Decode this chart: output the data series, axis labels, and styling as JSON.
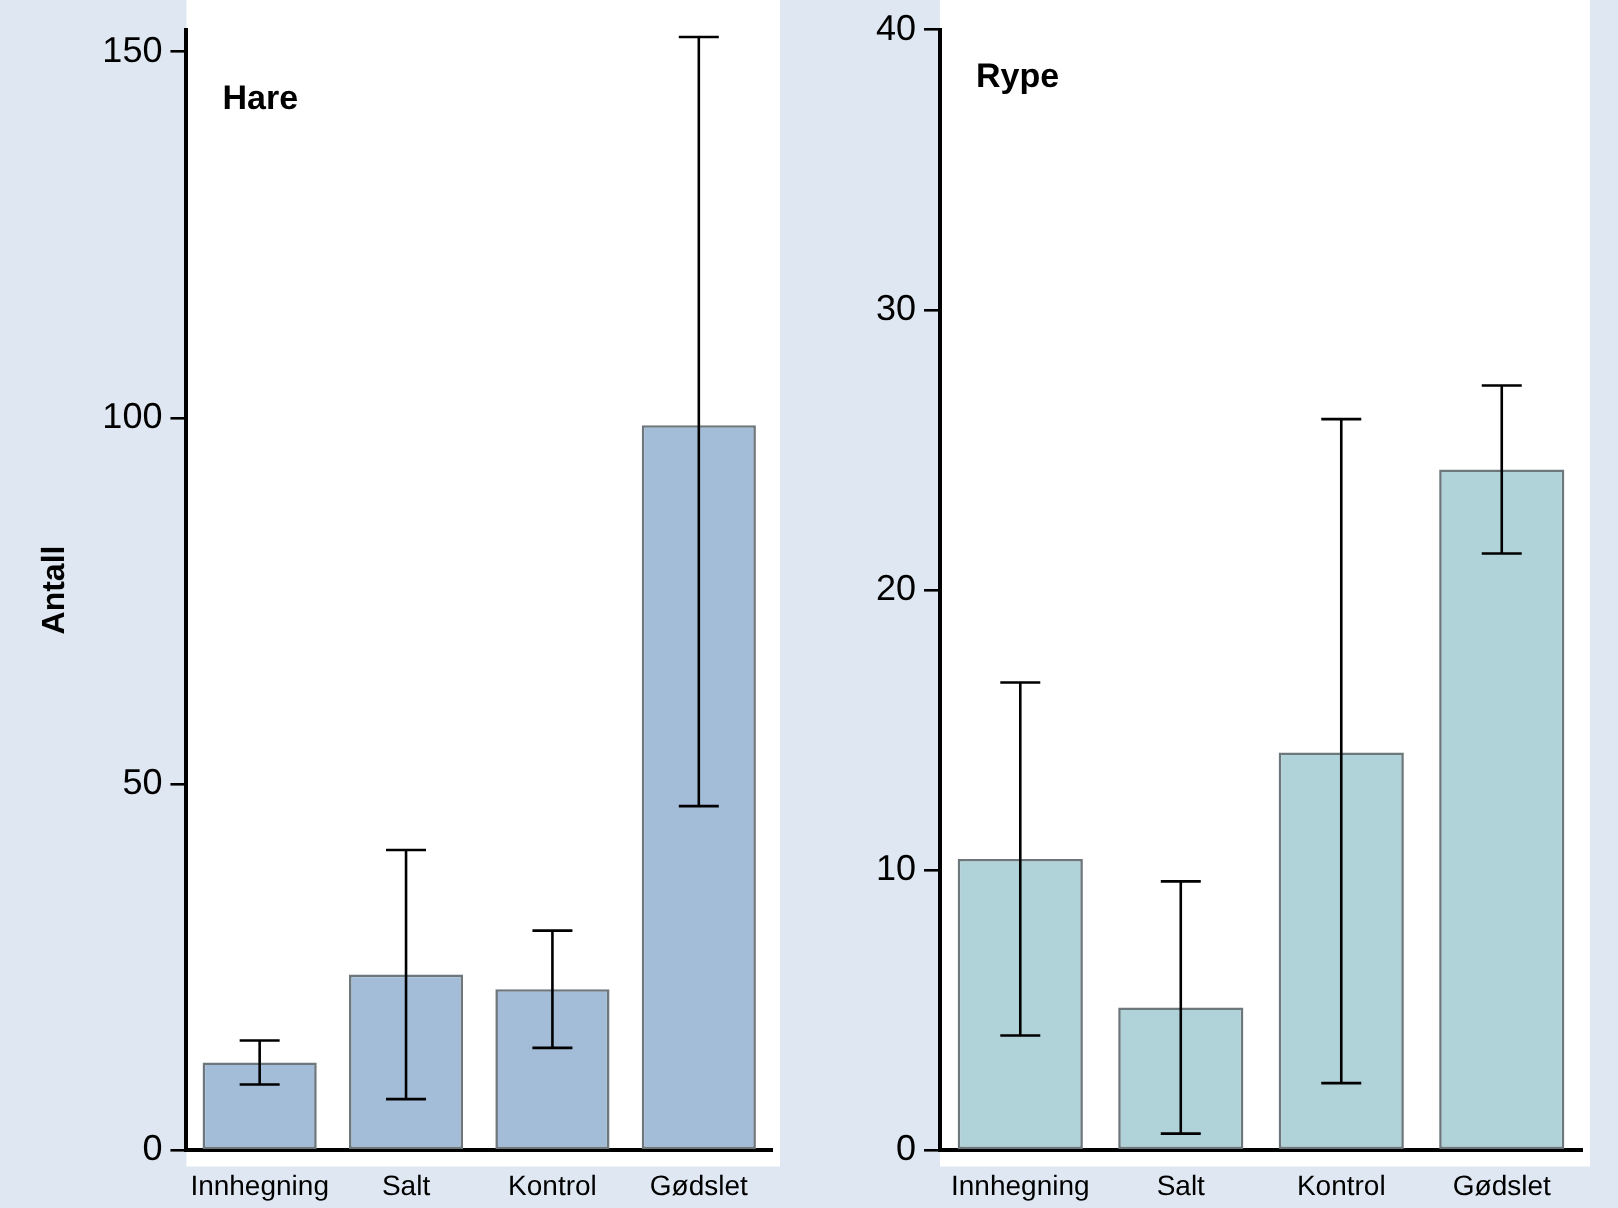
{
  "chart_data": [
    {
      "type": "bar",
      "title": "Hare",
      "ylabel": "Antall",
      "categories": [
        "Innhegning",
        "Salt",
        "Kontrol",
        "Gødslet"
      ],
      "values": [
        12,
        24,
        22,
        99
      ],
      "errors": [
        [
          9,
          15
        ],
        [
          7,
          41
        ],
        [
          14,
          30
        ],
        [
          47,
          152
        ]
      ],
      "color": "#a3bdd8",
      "ylim": [
        0,
        153
      ],
      "yticks": [
        0,
        50,
        100,
        150
      ],
      "grid": false,
      "legend": false
    },
    {
      "type": "bar",
      "title": "Rype",
      "categories": [
        "Innhegning",
        "Salt",
        "Kontrol",
        "Gødslet"
      ],
      "values": [
        10.4,
        5.1,
        14.2,
        24.3
      ],
      "errors": [
        [
          4.1,
          16.7
        ],
        [
          0.6,
          9.6
        ],
        [
          2.4,
          26.1
        ],
        [
          21.3,
          27.3
        ]
      ],
      "color": "#b0d3da",
      "ylim": [
        0,
        40
      ],
      "yticks": [
        0,
        10,
        20,
        30,
        40
      ],
      "grid": false,
      "legend": false
    }
  ]
}
